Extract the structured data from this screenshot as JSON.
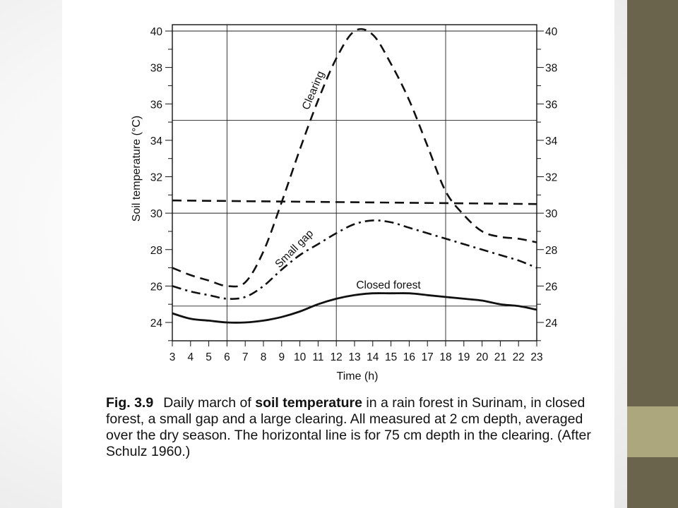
{
  "chart_data": {
    "type": "line",
    "xlabel": "Time (h)",
    "ylabel": "Soil temperature (°C)",
    "xlim": [
      3,
      23
    ],
    "ylim": [
      23,
      40.5
    ],
    "x_ticks": [
      3,
      4,
      5,
      6,
      7,
      8,
      9,
      10,
      11,
      12,
      13,
      14,
      15,
      16,
      17,
      18,
      19,
      20,
      21,
      22,
      23
    ],
    "y_ticks": [
      24,
      26,
      28,
      30,
      32,
      34,
      36,
      38,
      40
    ],
    "grid_x": [
      6,
      12,
      18
    ],
    "grid_y": [
      24.9,
      30.0,
      35.1,
      40.0
    ],
    "series": [
      {
        "name": "Clearing",
        "style": "dashed",
        "x": [
          3,
          4,
          5,
          6,
          7,
          8,
          9,
          10,
          11,
          12,
          13,
          14,
          15,
          16,
          17,
          18,
          19,
          20,
          21,
          22,
          23
        ],
        "y": [
          27.0,
          26.6,
          26.3,
          26.0,
          26.2,
          27.9,
          30.6,
          33.5,
          36.2,
          38.5,
          40.0,
          39.8,
          38.2,
          36.2,
          33.7,
          31.2,
          29.9,
          29.0,
          28.7,
          28.6,
          28.4
        ]
      },
      {
        "name": "Small gap",
        "style": "dash-dot",
        "x": [
          3,
          4,
          5,
          6,
          7,
          8,
          9,
          10,
          11,
          12,
          13,
          14,
          15,
          16,
          17,
          18,
          19,
          20,
          21,
          22,
          23
        ],
        "y": [
          26.0,
          25.7,
          25.5,
          25.3,
          25.4,
          26.0,
          26.9,
          27.7,
          28.3,
          28.9,
          29.4,
          29.6,
          29.5,
          29.2,
          28.9,
          28.6,
          28.3,
          28.0,
          27.7,
          27.4,
          27.0
        ]
      },
      {
        "name": "Closed forest",
        "style": "solid",
        "x": [
          3,
          4,
          5,
          6,
          7,
          8,
          9,
          10,
          11,
          12,
          13,
          14,
          15,
          16,
          17,
          18,
          19,
          20,
          21,
          22,
          23
        ],
        "y": [
          24.5,
          24.2,
          24.1,
          24.0,
          24.0,
          24.1,
          24.3,
          24.6,
          25.0,
          25.3,
          25.5,
          25.6,
          25.6,
          25.6,
          25.5,
          25.4,
          25.3,
          25.2,
          25.0,
          24.9,
          24.7
        ]
      },
      {
        "name": "",
        "style": "dashed",
        "x": [
          3,
          23
        ],
        "y": [
          30.7,
          30.5
        ]
      }
    ]
  },
  "caption": {
    "fig": "Fig. 3.9",
    "part1": "Daily march of ",
    "bold": "soil temperature",
    "part2": " in a rain forest in Surinam, in closed forest, a small gap and a large clearing. All measured at 2 cm depth, averaged over the dry season. The horizontal line is for 75 cm depth in the clearing. (After Schulz 1960.)"
  }
}
